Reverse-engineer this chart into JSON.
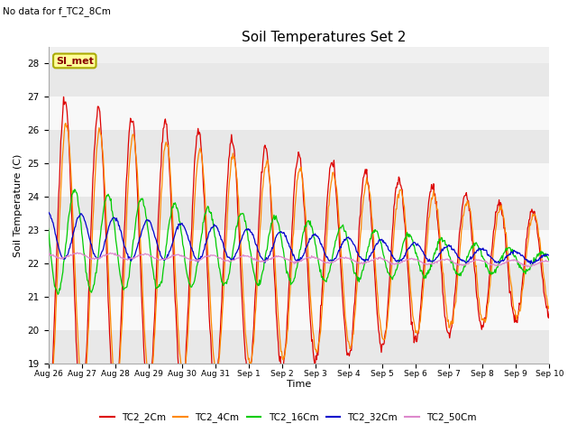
{
  "title": "Soil Temperatures Set 2",
  "subtitle": "No data for f_TC2_8Cm",
  "ylabel": "Soil Temperature (C)",
  "xlabel": "Time",
  "ylim": [
    19.0,
    28.5
  ],
  "bg_color": "#f0f0f0",
  "fig_color": "#ffffff",
  "series_colors": {
    "TC2_2Cm": "#dd0000",
    "TC2_4Cm": "#ff8800",
    "TC2_16Cm": "#00cc00",
    "TC2_32Cm": "#0000cc",
    "TC2_50Cm": "#dd88cc"
  },
  "legend_label": "SI_met",
  "yticks": [
    19.0,
    20.0,
    21.0,
    22.0,
    23.0,
    24.0,
    25.0,
    26.0,
    27.0,
    28.0
  ],
  "xtick_labels": [
    "Aug 26",
    "Aug 27",
    "Aug 28",
    "Aug 29",
    "Aug 30",
    "Aug 31",
    "Sep 1",
    "Sep 2",
    "Sep 3",
    "Sep 4",
    "Sep 5",
    "Sep 6",
    "Sep 7",
    "Sep 8",
    "Sep 9",
    "Sep 10"
  ],
  "num_days": 15,
  "band_colors": [
    "#e8e8e8",
    "#f8f8f8"
  ]
}
